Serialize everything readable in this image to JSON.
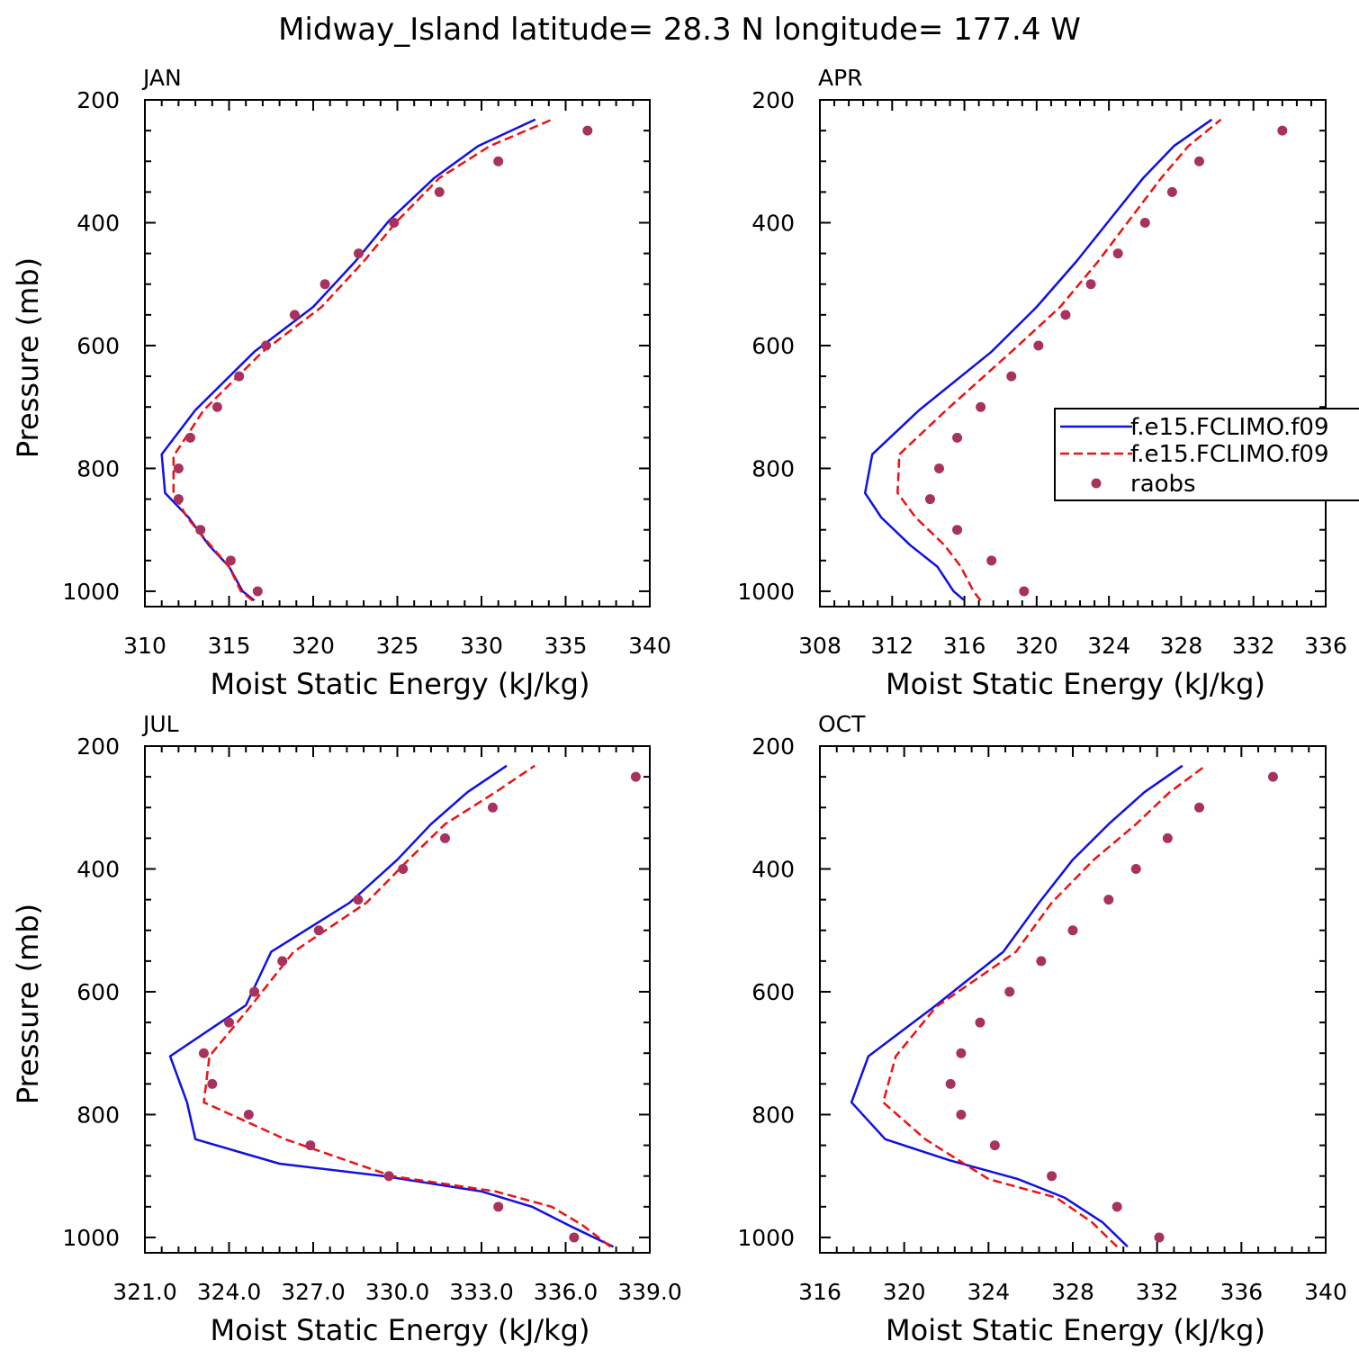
{
  "title": "Midway_Island  latitude= 28.3 N longitude= 177.4 W",
  "colors": {
    "model1": "#1010e6",
    "model2": "#ee1111",
    "raobs": "#a8325e"
  },
  "legend": {
    "entries": [
      {
        "label": "f.e15.FCLIMO.f09",
        "style": "solid",
        "color": "#1010e6"
      },
      {
        "label": "f.e15.FCLIMO.f09",
        "style": "dashed",
        "color": "#ee1111"
      },
      {
        "label": "raobs",
        "style": "marker",
        "color": "#a8325e"
      }
    ]
  },
  "chart_data": [
    {
      "type": "line",
      "panel_label": "JAN",
      "xlabel": "Moist Static Energy (kJ/kg)",
      "ylabel": "Pressure (mb)",
      "xlim": [
        310,
        340
      ],
      "ylim": [
        1025,
        200
      ],
      "xticks": [
        "310",
        "315",
        "320",
        "325",
        "330",
        "335",
        "340"
      ],
      "xtick_values": [
        310,
        315,
        320,
        325,
        330,
        335,
        340
      ],
      "yticks": [
        "200",
        "400",
        "600",
        "800",
        "1000"
      ],
      "ytick_values": [
        200,
        400,
        600,
        800,
        1000
      ],
      "series": [
        {
          "style": "solid",
          "points": [
            [
              316.5,
              1015
            ],
            [
              315.8,
              1000
            ],
            [
              315.0,
              960
            ],
            [
              313.8,
              925
            ],
            [
              312.6,
              880
            ],
            [
              311.2,
              840
            ],
            [
              311.0,
              777
            ],
            [
              313.0,
              705
            ],
            [
              316.5,
              610
            ],
            [
              320.0,
              537
            ],
            [
              322.5,
              463
            ],
            [
              324.5,
              397
            ],
            [
              327.2,
              327
            ],
            [
              329.8,
              275
            ],
            [
              333.2,
              232
            ]
          ]
        },
        {
          "style": "dashed",
          "points": [
            [
              316.4,
              1015
            ],
            [
              315.7,
              1000
            ],
            [
              315.0,
              960
            ],
            [
              313.9,
              925
            ],
            [
              312.5,
              880
            ],
            [
              311.7,
              840
            ],
            [
              311.7,
              780
            ],
            [
              313.5,
              705
            ],
            [
              317.0,
              610
            ],
            [
              320.5,
              537
            ],
            [
              323.0,
              463
            ],
            [
              325.0,
              397
            ],
            [
              327.5,
              327
            ],
            [
              330.5,
              275
            ],
            [
              334.2,
              232
            ]
          ]
        }
      ],
      "raobs": [
        [
          336.3,
          250
        ],
        [
          331.0,
          300
        ],
        [
          327.5,
          350
        ],
        [
          324.8,
          400
        ],
        [
          322.7,
          450
        ],
        [
          320.7,
          500
        ],
        [
          318.9,
          550
        ],
        [
          317.2,
          600
        ],
        [
          315.6,
          650
        ],
        [
          314.3,
          700
        ],
        [
          312.7,
          750
        ],
        [
          312.0,
          800
        ],
        [
          312.0,
          850
        ],
        [
          313.3,
          900
        ],
        [
          315.1,
          950
        ],
        [
          316.7,
          1000
        ]
      ]
    },
    {
      "type": "line",
      "panel_label": "APR",
      "xlabel": "Moist Static Energy (kJ/kg)",
      "ylabel": "",
      "xlim": [
        308,
        336
      ],
      "ylim": [
        1025,
        200
      ],
      "xticks": [
        "308",
        "312",
        "316",
        "320",
        "324",
        "328",
        "332",
        "336"
      ],
      "xtick_values": [
        308,
        312,
        316,
        320,
        324,
        328,
        332,
        336
      ],
      "yticks": [
        "200",
        "400",
        "600",
        "800",
        "1000"
      ],
      "ytick_values": [
        200,
        400,
        600,
        800,
        1000
      ],
      "series": [
        {
          "style": "solid",
          "points": [
            [
              316.0,
              1015
            ],
            [
              315.4,
              1000
            ],
            [
              314.5,
              960
            ],
            [
              313.0,
              925
            ],
            [
              311.4,
              880
            ],
            [
              310.5,
              840
            ],
            [
              310.9,
              777
            ],
            [
              313.5,
              705
            ],
            [
              317.5,
              610
            ],
            [
              320.0,
              537
            ],
            [
              322.2,
              463
            ],
            [
              324.0,
              397
            ],
            [
              325.9,
              327
            ],
            [
              327.6,
              275
            ],
            [
              329.7,
              232
            ]
          ]
        },
        {
          "style": "dashed",
          "points": [
            [
              316.9,
              1015
            ],
            [
              316.5,
              1000
            ],
            [
              315.8,
              960
            ],
            [
              314.9,
              925
            ],
            [
              313.3,
              880
            ],
            [
              312.3,
              840
            ],
            [
              312.4,
              777
            ],
            [
              315.0,
              705
            ],
            [
              318.6,
              610
            ],
            [
              321.3,
              537
            ],
            [
              323.4,
              463
            ],
            [
              325.1,
              397
            ],
            [
              326.9,
              327
            ],
            [
              328.4,
              275
            ],
            [
              330.2,
              232
            ]
          ]
        }
      ],
      "raobs": [
        [
          333.6,
          250
        ],
        [
          329.0,
          300
        ],
        [
          327.5,
          350
        ],
        [
          326.0,
          400
        ],
        [
          324.5,
          450
        ],
        [
          323.0,
          500
        ],
        [
          321.6,
          550
        ],
        [
          320.1,
          600
        ],
        [
          318.6,
          650
        ],
        [
          316.9,
          700
        ],
        [
          315.6,
          750
        ],
        [
          314.6,
          800
        ],
        [
          314.1,
          850
        ],
        [
          315.6,
          900
        ],
        [
          317.5,
          950
        ],
        [
          319.3,
          1000
        ]
      ]
    },
    {
      "type": "line",
      "panel_label": "JUL",
      "xlabel": "Moist Static Energy (kJ/kg)",
      "ylabel": "Pressure (mb)",
      "xlim": [
        321.0,
        339.0
      ],
      "ylim": [
        1025,
        200
      ],
      "xticks": [
        "321.0",
        "324.0",
        "327.0",
        "330.0",
        "333.0",
        "336.0",
        "339.0"
      ],
      "xtick_values": [
        321,
        324,
        327,
        330,
        333,
        336,
        339
      ],
      "yticks": [
        "200",
        "400",
        "600",
        "800",
        "1000"
      ],
      "ytick_values": [
        200,
        400,
        600,
        800,
        1000
      ],
      "series": [
        {
          "style": "solid",
          "points": [
            [
              337.7,
              1015
            ],
            [
              336.1,
              980
            ],
            [
              334.8,
              950
            ],
            [
              333.0,
              925
            ],
            [
              329.5,
              900
            ],
            [
              325.8,
              880
            ],
            [
              322.8,
              840
            ],
            [
              322.5,
              780
            ],
            [
              321.9,
              705
            ],
            [
              324.6,
              622
            ],
            [
              325.5,
              535
            ],
            [
              328.3,
              455
            ],
            [
              330.0,
              385
            ],
            [
              331.2,
              327
            ],
            [
              332.5,
              275
            ],
            [
              333.9,
              232
            ]
          ]
        },
        {
          "style": "dashed",
          "points": [
            [
              337.6,
              1015
            ],
            [
              336.6,
              980
            ],
            [
              335.5,
              950
            ],
            [
              333.5,
              925
            ],
            [
              329.8,
              900
            ],
            [
              326.0,
              840
            ],
            [
              323.1,
              780
            ],
            [
              323.3,
              705
            ],
            [
              324.8,
              622
            ],
            [
              326.3,
              535
            ],
            [
              328.9,
              455
            ],
            [
              330.4,
              385
            ],
            [
              331.7,
              327
            ],
            [
              333.5,
              275
            ],
            [
              334.9,
              232
            ]
          ]
        }
      ],
      "raobs": [
        [
          338.5,
          250
        ],
        [
          333.4,
          300
        ],
        [
          331.7,
          350
        ],
        [
          330.2,
          400
        ],
        [
          328.6,
          450
        ],
        [
          327.2,
          500
        ],
        [
          325.9,
          550
        ],
        [
          324.9,
          600
        ],
        [
          324.0,
          650
        ],
        [
          323.1,
          700
        ],
        [
          323.4,
          750
        ],
        [
          324.7,
          800
        ],
        [
          326.9,
          850
        ],
        [
          329.7,
          900
        ],
        [
          333.6,
          950
        ],
        [
          336.3,
          1000
        ]
      ]
    },
    {
      "type": "line",
      "panel_label": "OCT",
      "xlabel": "Moist Static Energy (kJ/kg)",
      "ylabel": "",
      "xlim": [
        316,
        340
      ],
      "ylim": [
        1025,
        200
      ],
      "xticks": [
        "316",
        "320",
        "324",
        "328",
        "332",
        "336",
        "340"
      ],
      "xtick_values": [
        316,
        320,
        324,
        328,
        332,
        336,
        340
      ],
      "yticks": [
        "200",
        "400",
        "600",
        "800",
        "1000"
      ],
      "ytick_values": [
        200,
        400,
        600,
        800,
        1000
      ],
      "series": [
        {
          "style": "solid",
          "points": [
            [
              330.6,
              1015
            ],
            [
              329.4,
              975
            ],
            [
              327.6,
              935
            ],
            [
              325.4,
              905
            ],
            [
              322.2,
              875
            ],
            [
              319.1,
              840
            ],
            [
              317.5,
              780
            ],
            [
              318.3,
              705
            ],
            [
              321.4,
              625
            ],
            [
              324.7,
              535
            ],
            [
              326.4,
              455
            ],
            [
              328.0,
              385
            ],
            [
              329.7,
              327
            ],
            [
              331.4,
              275
            ],
            [
              333.2,
              232
            ]
          ]
        },
        {
          "style": "dashed",
          "points": [
            [
              330.1,
              1015
            ],
            [
              328.9,
              975
            ],
            [
              327.2,
              935
            ],
            [
              324.0,
              905
            ],
            [
              321.0,
              840
            ],
            [
              319.0,
              780
            ],
            [
              319.6,
              705
            ],
            [
              321.5,
              625
            ],
            [
              325.3,
              535
            ],
            [
              327.0,
              455
            ],
            [
              329.0,
              385
            ],
            [
              331.0,
              327
            ],
            [
              332.6,
              275
            ],
            [
              334.3,
              232
            ]
          ]
        }
      ],
      "raobs": [
        [
          337.5,
          250
        ],
        [
          334.0,
          300
        ],
        [
          332.5,
          350
        ],
        [
          331.0,
          400
        ],
        [
          329.7,
          450
        ],
        [
          328.0,
          500
        ],
        [
          326.5,
          550
        ],
        [
          325.0,
          600
        ],
        [
          323.6,
          650
        ],
        [
          322.7,
          700
        ],
        [
          322.2,
          750
        ],
        [
          322.7,
          800
        ],
        [
          324.3,
          850
        ],
        [
          327.0,
          900
        ],
        [
          330.1,
          950
        ],
        [
          332.1,
          1000
        ]
      ]
    }
  ]
}
